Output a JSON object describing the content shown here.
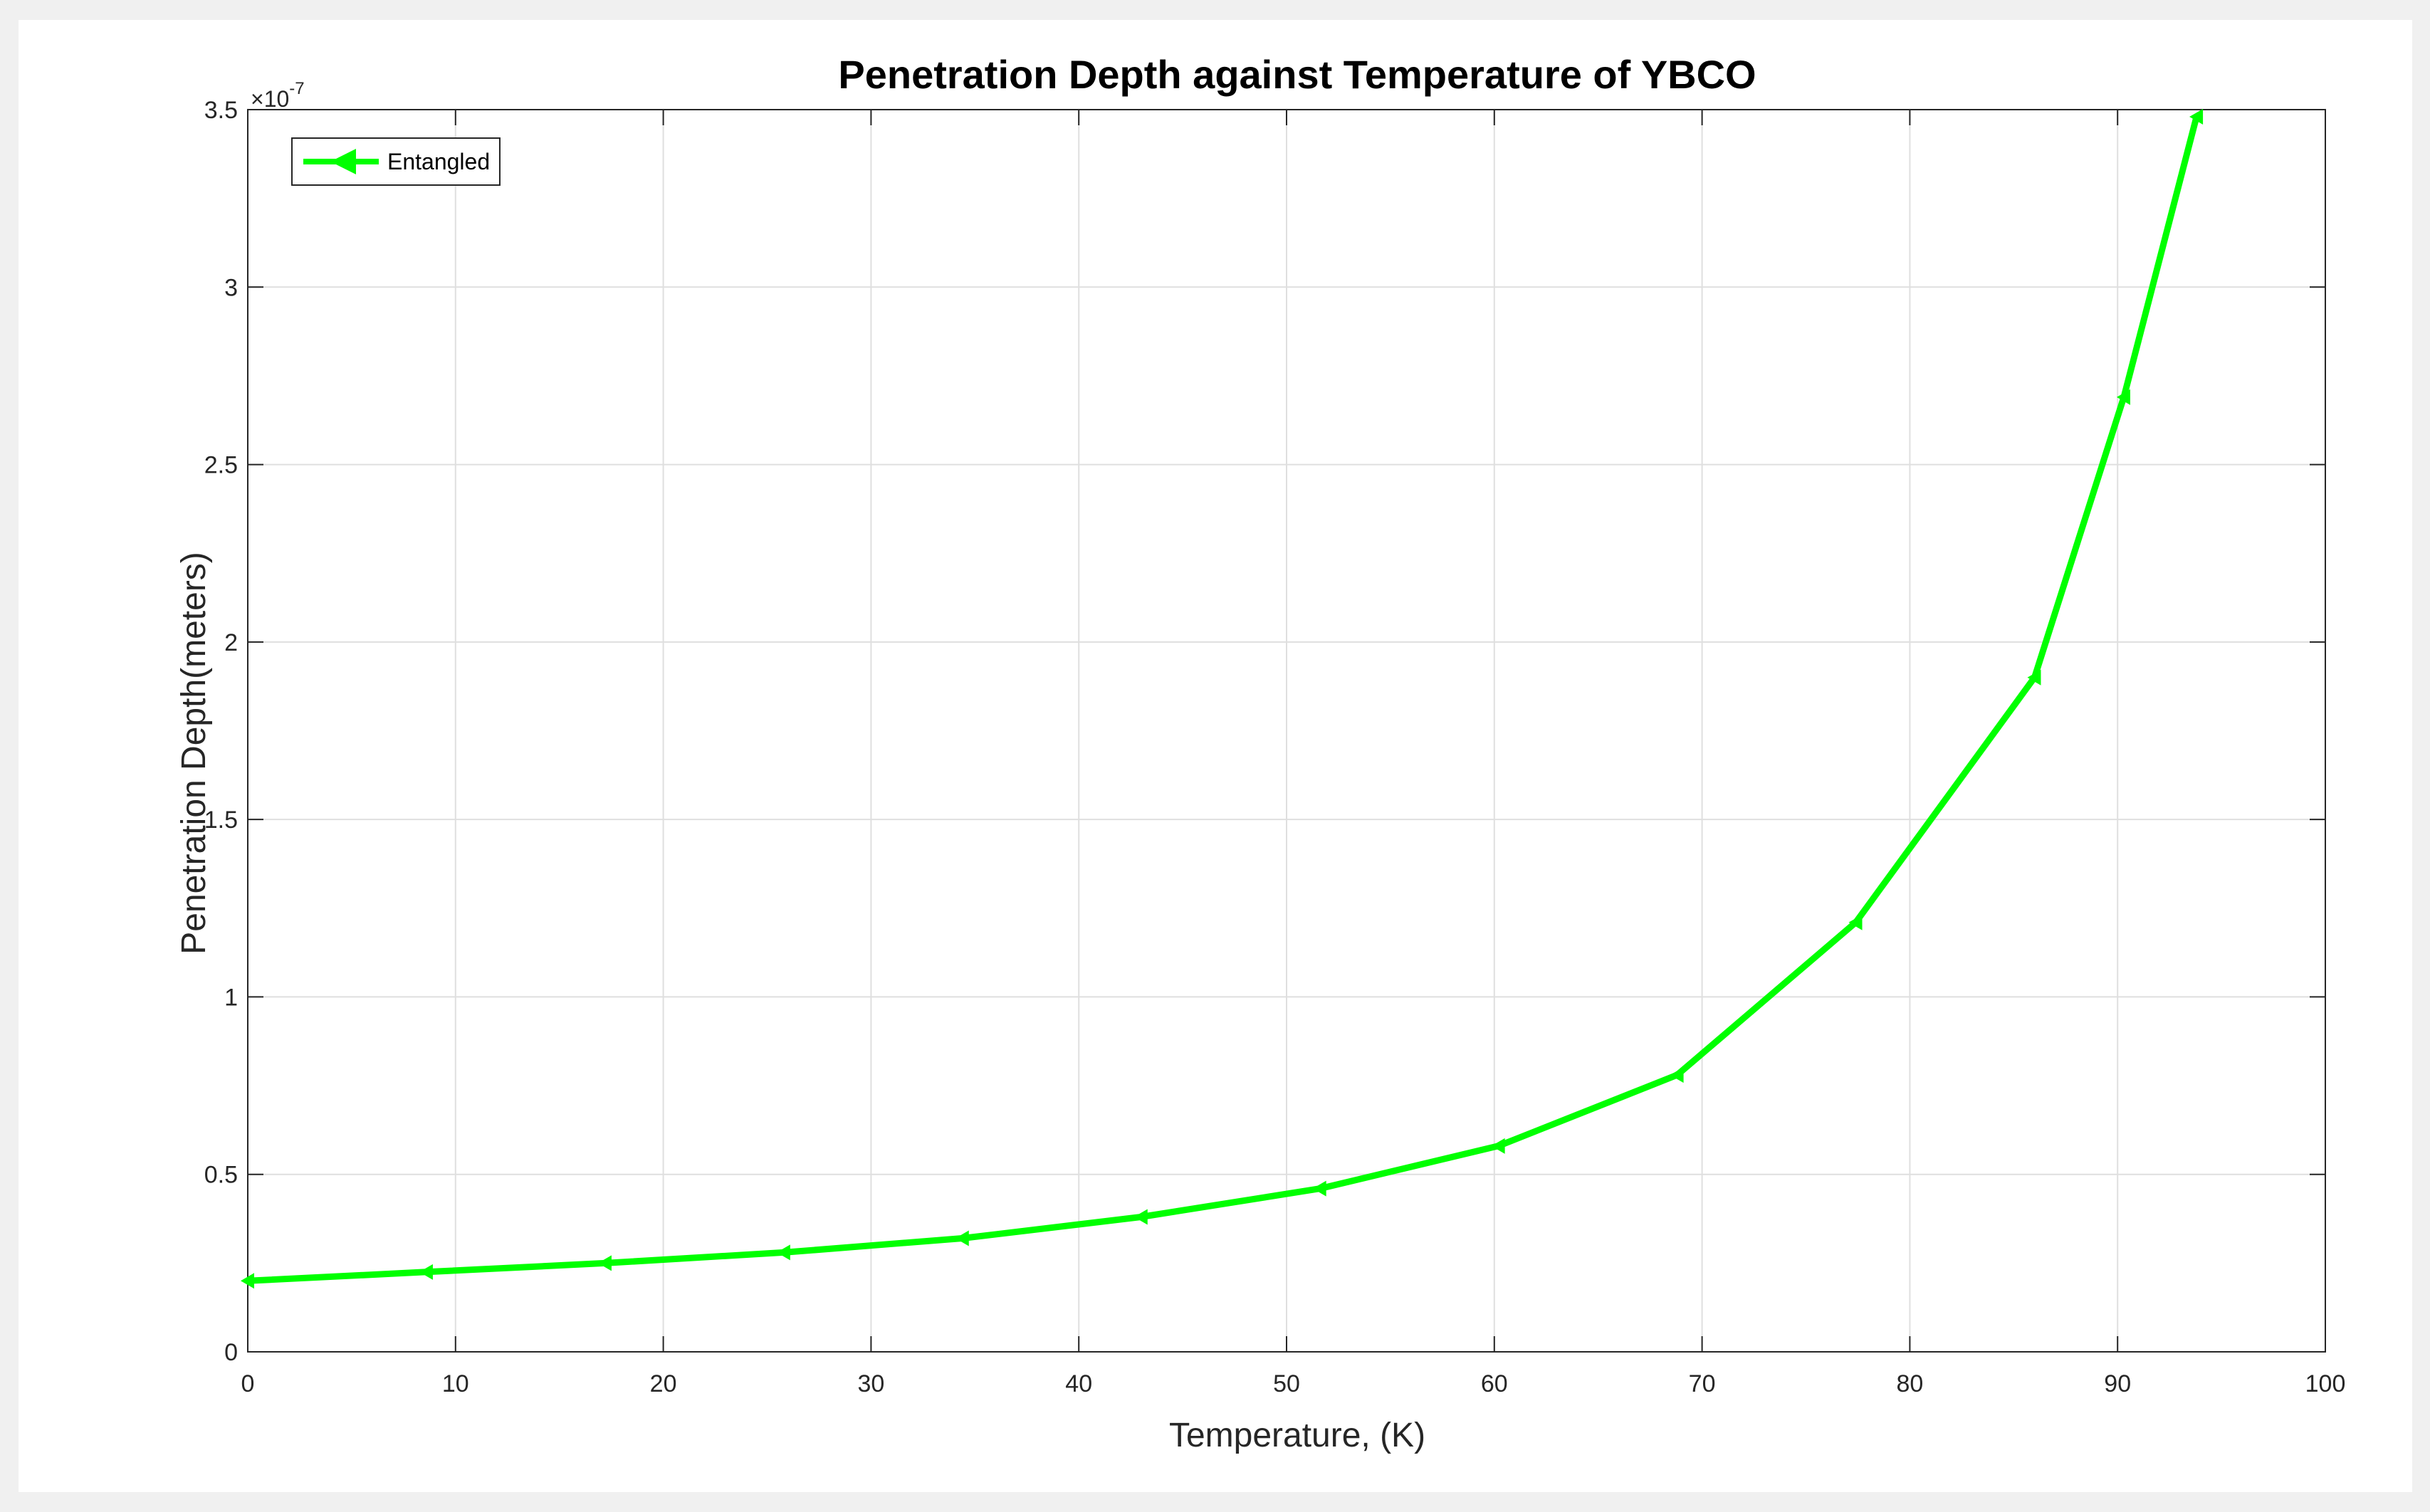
{
  "chart_data": {
    "type": "line",
    "title": "Penetration Depth against Temperature of YBCO",
    "xlabel": "Temperature, (K)",
    "ylabel": "Penetration Depth(meters)",
    "y_exponent": {
      "base": "×10",
      "power": "-7"
    },
    "xlim": [
      0,
      100
    ],
    "ylim": [
      0,
      3.5
    ],
    "x_ticks": [
      0,
      10,
      20,
      30,
      40,
      50,
      60,
      70,
      80,
      90,
      100
    ],
    "x_tick_labels": [
      "0",
      "10",
      "20",
      "30",
      "40",
      "50",
      "60",
      "70",
      "80",
      "90",
      "100"
    ],
    "y_ticks": [
      0,
      0.5,
      1,
      1.5,
      2,
      2.5,
      3,
      3.5
    ],
    "y_tick_labels": [
      "0",
      "0.5",
      "1",
      "1.5",
      "2",
      "2.5",
      "3",
      "3.5"
    ],
    "grid": true,
    "legend_position": "top-left",
    "series": [
      {
        "name": "Entangled",
        "color": "#00ff00",
        "marker": "left-triangle",
        "x": [
          0,
          8.6,
          17.2,
          25.8,
          34.4,
          43.0,
          51.6,
          60.2,
          68.8,
          77.4,
          86.0,
          90.3,
          93.8
        ],
        "y": [
          0.2,
          0.225,
          0.25,
          0.28,
          0.32,
          0.38,
          0.46,
          0.58,
          0.78,
          1.21,
          1.9,
          2.69,
          3.48
        ]
      }
    ]
  }
}
